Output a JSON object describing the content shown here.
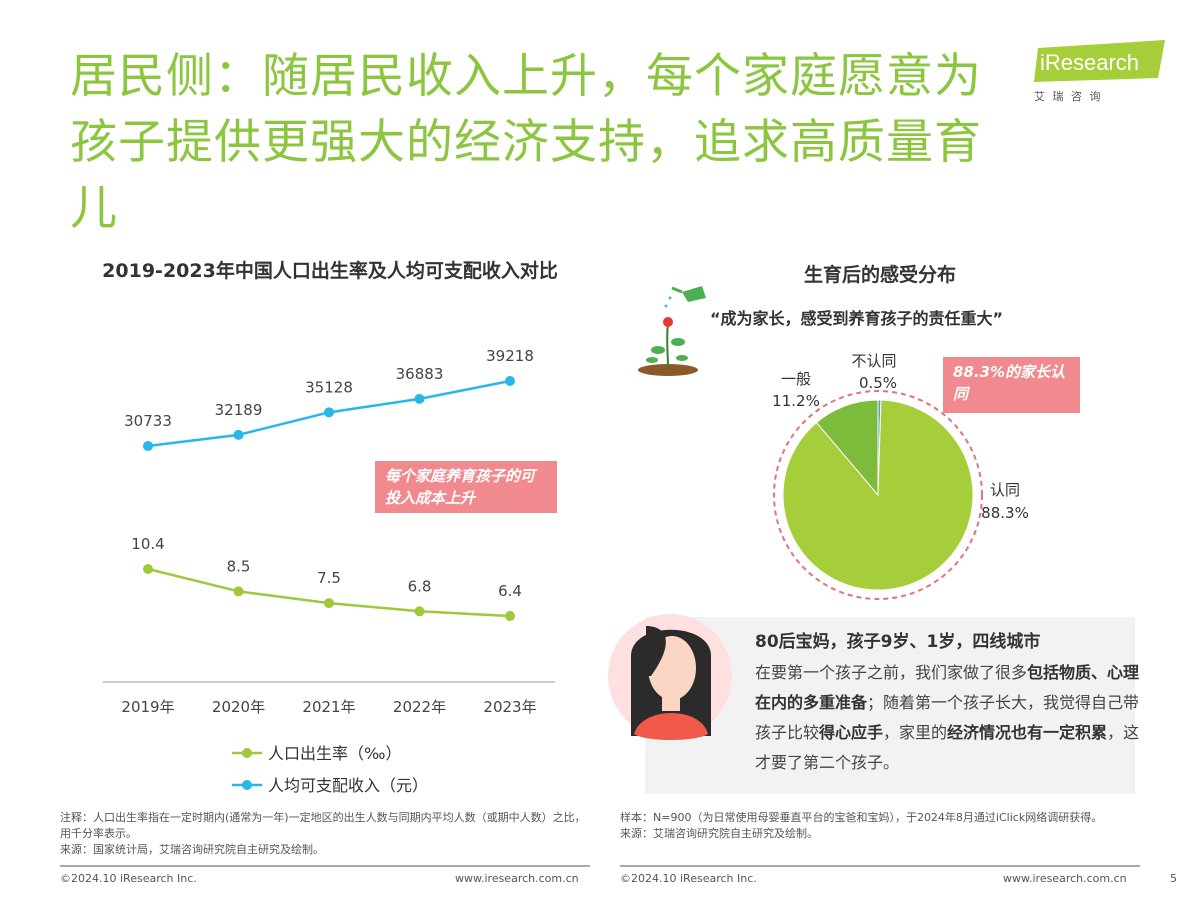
{
  "title": "居民侧：随居民收入上升，每个家庭愿意为孩子提供更强大的经济支持，追求高质量育儿",
  "logo": {
    "brand": "iResearch",
    "sub": "艾 瑞 咨 询"
  },
  "colors": {
    "accent": "#8cc63f",
    "income": "#29b6e8",
    "birth": "#9dc93b",
    "tag": "#f08a8e",
    "pie_agree": "#a6cd3a",
    "pie_neutral": "#7dbb3a",
    "pie_disagree": "#5b9bd5"
  },
  "chart_data": [
    {
      "type": "line",
      "title": "2019-2023年中国人口出生率及人均可支配收入对比",
      "categories": [
        "2019年",
        "2020年",
        "2021年",
        "2022年",
        "2023年"
      ],
      "series": [
        {
          "name": "人口出生率（‰）",
          "values": [
            10.4,
            8.5,
            7.5,
            6.8,
            6.4
          ]
        },
        {
          "name": "人均可支配收入（元）",
          "values": [
            30733,
            32189,
            35128,
            36883,
            39218
          ]
        }
      ],
      "annotation": "每个家庭养育孩子的可投入成本上升",
      "legend": "bottom",
      "grid": false
    },
    {
      "type": "pie",
      "title": "生育后的感受分布",
      "subtitle": "“成为家长，感受到养育孩子的责任重大”",
      "slices": [
        {
          "label": "不认同",
          "value": 0.5,
          "text": "0.5%"
        },
        {
          "label": "认同",
          "value": 88.3,
          "text": "88.3%"
        },
        {
          "label": "一般",
          "value": 11.2,
          "text": "11.2%"
        }
      ],
      "annotation": "88.3%的家长认同"
    }
  ],
  "quote": {
    "heading": "80后宝妈，孩子9岁、1岁，四线城市",
    "parts": [
      {
        "t": "在要第一个孩子之前，我们家做了很多",
        "b": false
      },
      {
        "t": "包括物质、心理在内的多重准备",
        "b": true
      },
      {
        "t": "；随着第一个孩子长大，我觉得自己带孩子比较",
        "b": false
      },
      {
        "t": "得心应手",
        "b": true
      },
      {
        "t": "，家里的",
        "b": false
      },
      {
        "t": "经济情况也有一定积累",
        "b": true
      },
      {
        "t": "，这才要了第二个孩子。",
        "b": false
      }
    ]
  },
  "notes": {
    "left": [
      "注释：人口出生率指在一定时期内(通常为一年)一定地区的出生人数与同期内平均人数（或期中人数）之比，用千分率表示。",
      "来源：国家统计局，艾瑞咨询研究院自主研究及绘制。"
    ],
    "right": [
      "样本：N=900（为日常使用母婴垂直平台的宝爸和宝妈），于2024年8月通过iClick网络调研获得。",
      "来源：艾瑞咨询研究院自主研究及绘制。"
    ]
  },
  "footer": {
    "copyright": "©2024.10 iResearch Inc.",
    "url": "www.iresearch.com.cn",
    "page": "5"
  }
}
